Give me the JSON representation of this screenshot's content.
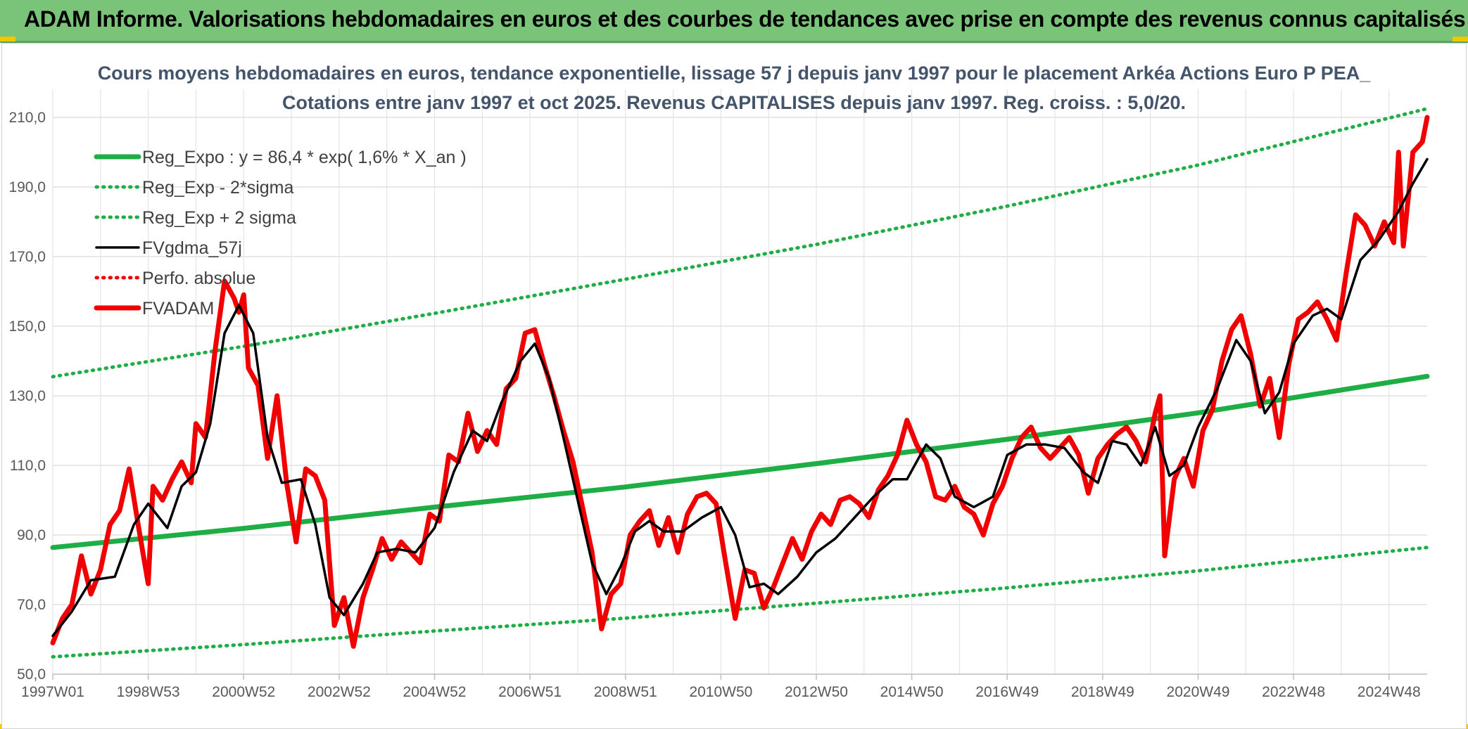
{
  "banner": {
    "title": "ADAM Informe. Valorisations hebdomadaires en euros et des courbes de tendances avec prise en compte des revenus connus capitalisés"
  },
  "colors": {
    "banner_bg": "#7ac47a",
    "trend_green": "#1fad45",
    "price_red": "#f00000",
    "smooth_black": "#000000",
    "title_text": "#44546a"
  },
  "chart_data": {
    "type": "line",
    "title": "Cours moyens hebdomadaires en euros, tendance exponentielle, lissage 57 j depuis janv 1997 pour le placement Arkéa  Actions Euro P PEA_",
    "subtitle": "Cotations entre janv 1997 et oct 2025. Revenus CAPITALISES depuis janv 1997. Reg. croiss. : 5,0/20.",
    "xlabel": "",
    "ylabel": "",
    "ylim": [
      50,
      210
    ],
    "yticks": [
      "50,0",
      "70,0",
      "90,0",
      "110,0",
      "130,0",
      "150,0",
      "170,0",
      "190,0",
      "210,0"
    ],
    "xlim": [
      1997.0,
      2025.8
    ],
    "xticks": [
      {
        "year": 1997.0,
        "label": "1997W01"
      },
      {
        "year": 1999.0,
        "label": "1998W53"
      },
      {
        "year": 2001.0,
        "label": "2000W52"
      },
      {
        "year": 2003.0,
        "label": "2002W52"
      },
      {
        "year": 2005.0,
        "label": "2004W52"
      },
      {
        "year": 2007.0,
        "label": "2006W51"
      },
      {
        "year": 2009.0,
        "label": "2008W51"
      },
      {
        "year": 2011.0,
        "label": "2010W50"
      },
      {
        "year": 2013.0,
        "label": "2012W50"
      },
      {
        "year": 2015.0,
        "label": "2014W50"
      },
      {
        "year": 2017.0,
        "label": "2016W49"
      },
      {
        "year": 2019.0,
        "label": "2018W49"
      },
      {
        "year": 2021.0,
        "label": "2020W49"
      },
      {
        "year": 2023.0,
        "label": "2022W48"
      },
      {
        "year": 2025.0,
        "label": "2024W48"
      }
    ],
    "grid": true,
    "legend_position": "top-left",
    "series": [
      {
        "name": "Reg_Expo : y = 86,4 * exp( 1,6% *  X_an )",
        "style": "solid-thick",
        "color": "#1fad45",
        "x": [
          1997.0,
          2001.0,
          2005.0,
          2009.0,
          2013.0,
          2017.0,
          2021.0,
          2025.8
        ],
        "y": [
          86.4,
          91.9,
          98.0,
          103.8,
          110.5,
          117.5,
          125.1,
          135.6
        ]
      },
      {
        "name": "Reg_Exp - 2*sigma",
        "style": "dotted",
        "color": "#1fad45",
        "x": [
          1997.0,
          2001.0,
          2005.0,
          2009.0,
          2013.0,
          2017.0,
          2021.0,
          2025.8
        ],
        "y": [
          55.0,
          58.5,
          62.4,
          66.1,
          70.4,
          74.8,
          79.7,
          86.4
        ]
      },
      {
        "name": "Reg_Exp + 2 sigma",
        "style": "dotted",
        "color": "#1fad45",
        "x": [
          1997.0,
          2001.0,
          2005.0,
          2009.0,
          2013.0,
          2017.0,
          2021.0,
          2025.8
        ],
        "y": [
          135.5,
          144.2,
          153.7,
          163.5,
          173.5,
          184.5,
          196.3,
          212.5
        ]
      },
      {
        "name": "FVgdma_57j",
        "style": "solid",
        "color": "#000000",
        "x": [
          1997.0,
          1997.4,
          1997.8,
          1998.3,
          1998.7,
          1999.0,
          1999.4,
          1999.7,
          2000.0,
          2000.3,
          2000.6,
          2000.9,
          2001.2,
          2001.5,
          2001.8,
          2002.2,
          2002.5,
          2002.8,
          2003.1,
          2003.5,
          2003.8,
          2004.2,
          2004.6,
          2005.0,
          2005.4,
          2005.8,
          2006.1,
          2006.4,
          2006.8,
          2007.1,
          2007.4,
          2007.7,
          2008.0,
          2008.3,
          2008.6,
          2008.9,
          2009.2,
          2009.5,
          2009.8,
          2010.2,
          2010.6,
          2011.0,
          2011.3,
          2011.6,
          2011.9,
          2012.2,
          2012.6,
          2013.0,
          2013.4,
          2013.8,
          2014.2,
          2014.6,
          2014.9,
          2015.3,
          2015.6,
          2015.9,
          2016.3,
          2016.7,
          2017.0,
          2017.4,
          2017.8,
          2018.2,
          2018.6,
          2018.9,
          2019.2,
          2019.5,
          2019.8,
          2020.1,
          2020.4,
          2020.7,
          2021.0,
          2021.4,
          2021.8,
          2022.1,
          2022.4,
          2022.7,
          2023.0,
          2023.4,
          2023.7,
          2024.0,
          2024.4,
          2024.8,
          2025.2,
          2025.5,
          2025.8
        ],
        "y": [
          61.0,
          68.0,
          77.0,
          78.0,
          93.0,
          99.0,
          92.0,
          104.0,
          108.0,
          122.0,
          148.0,
          156.0,
          148.0,
          118.0,
          105.0,
          106.0,
          93.0,
          72.0,
          67.0,
          76.0,
          85.0,
          86.0,
          85.0,
          92.0,
          108.0,
          120.0,
          117.0,
          128.0,
          140.0,
          145.0,
          135.0,
          118.0,
          100.0,
          82.0,
          73.0,
          81.0,
          91.0,
          94.0,
          91.0,
          91.0,
          95.0,
          98.0,
          90.0,
          75.0,
          76.0,
          73.0,
          78.0,
          85.0,
          89.0,
          95.0,
          101.0,
          106.0,
          106.0,
          116.0,
          112.0,
          101.0,
          98.0,
          101.0,
          113.0,
          116.0,
          116.0,
          115.0,
          108.0,
          105.0,
          117.0,
          116.0,
          110.0,
          121.0,
          107.0,
          110.0,
          121.0,
          132.0,
          146.0,
          140.0,
          125.0,
          131.0,
          145.0,
          153.0,
          155.0,
          152.0,
          169.0,
          175.0,
          183.0,
          191.0,
          198.0
        ]
      },
      {
        "name": "Perfo. absolue",
        "style": "dotted",
        "color": "#f00000",
        "x": [],
        "y": []
      },
      {
        "name": "FVADAM",
        "style": "solid-thick",
        "color": "#f00000",
        "x": [
          1997.0,
          1997.2,
          1997.4,
          1997.6,
          1997.8,
          1998.0,
          1998.2,
          1998.4,
          1998.6,
          1998.8,
          1999.0,
          1999.1,
          1999.3,
          1999.5,
          1999.7,
          1999.9,
          2000.0,
          2000.2,
          2000.4,
          2000.6,
          2000.8,
          2000.9,
          2001.0,
          2001.1,
          2001.3,
          2001.5,
          2001.7,
          2001.9,
          2002.1,
          2002.3,
          2002.5,
          2002.7,
          2002.9,
          2003.1,
          2003.3,
          2003.5,
          2003.7,
          2003.9,
          2004.1,
          2004.3,
          2004.5,
          2004.7,
          2004.9,
          2005.1,
          2005.3,
          2005.5,
          2005.7,
          2005.9,
          2006.1,
          2006.3,
          2006.5,
          2006.7,
          2006.9,
          2007.1,
          2007.3,
          2007.5,
          2007.7,
          2007.9,
          2008.1,
          2008.3,
          2008.5,
          2008.7,
          2008.9,
          2009.1,
          2009.3,
          2009.5,
          2009.7,
          2009.9,
          2010.1,
          2010.3,
          2010.5,
          2010.7,
          2010.9,
          2011.1,
          2011.3,
          2011.5,
          2011.7,
          2011.9,
          2012.1,
          2012.3,
          2012.5,
          2012.7,
          2012.9,
          2013.1,
          2013.3,
          2013.5,
          2013.7,
          2013.9,
          2014.1,
          2014.3,
          2014.5,
          2014.7,
          2014.9,
          2015.1,
          2015.3,
          2015.5,
          2015.7,
          2015.9,
          2016.1,
          2016.3,
          2016.5,
          2016.7,
          2016.9,
          2017.1,
          2017.3,
          2017.5,
          2017.7,
          2017.9,
          2018.1,
          2018.3,
          2018.5,
          2018.7,
          2018.9,
          2019.1,
          2019.3,
          2019.5,
          2019.7,
          2019.9,
          2020.1,
          2020.2,
          2020.3,
          2020.5,
          2020.7,
          2020.9,
          2021.1,
          2021.3,
          2021.5,
          2021.7,
          2021.9,
          2022.1,
          2022.3,
          2022.5,
          2022.7,
          2022.9,
          2023.1,
          2023.3,
          2023.5,
          2023.7,
          2023.9,
          2024.1,
          2024.3,
          2024.5,
          2024.7,
          2024.9,
          2025.1,
          2025.2,
          2025.3,
          2025.5,
          2025.7,
          2025.8
        ],
        "y": [
          59.0,
          66.0,
          70.0,
          84.0,
          73.0,
          80.0,
          93.0,
          97.0,
          109.0,
          92.0,
          76.0,
          104.0,
          100.0,
          106.0,
          111.0,
          105.0,
          122.0,
          118.0,
          143.0,
          163.0,
          158.0,
          154.0,
          159.0,
          138.0,
          133.0,
          112.0,
          130.0,
          105.0,
          88.0,
          109.0,
          107.0,
          100.0,
          64.0,
          72.0,
          58.0,
          72.0,
          80.0,
          89.0,
          83.0,
          88.0,
          85.0,
          82.0,
          96.0,
          94.0,
          113.0,
          111.0,
          125.0,
          114.0,
          120.0,
          116.0,
          132.0,
          135.0,
          148.0,
          149.0,
          139.0,
          130.0,
          120.0,
          111.0,
          98.0,
          85.0,
          63.0,
          73.0,
          76.0,
          90.0,
          94.0,
          97.0,
          87.0,
          95.0,
          85.0,
          96.0,
          101.0,
          102.0,
          99.0,
          82.0,
          66.0,
          80.0,
          79.0,
          69.0,
          75.0,
          82.0,
          89.0,
          83.0,
          91.0,
          96.0,
          93.0,
          100.0,
          101.0,
          99.0,
          95.0,
          103.0,
          107.0,
          113.0,
          123.0,
          116.0,
          111.0,
          101.0,
          100.0,
          104.0,
          98.0,
          96.0,
          90.0,
          99.0,
          104.0,
          112.0,
          118.0,
          121.0,
          115.0,
          112.0,
          115.0,
          118.0,
          113.0,
          102.0,
          112.0,
          116.0,
          119.0,
          121.0,
          117.0,
          111.0,
          125.0,
          130.0,
          84.0,
          106.0,
          112.0,
          104.0,
          120.0,
          126.0,
          140.0,
          149.0,
          153.0,
          142.0,
          127.0,
          135.0,
          118.0,
          139.0,
          152.0,
          154.0,
          157.0,
          152.0,
          146.0,
          165.0,
          182.0,
          179.0,
          173.0,
          180.0,
          174.0,
          200.0,
          173.0,
          200.0,
          203.0,
          210.0
        ]
      }
    ]
  }
}
